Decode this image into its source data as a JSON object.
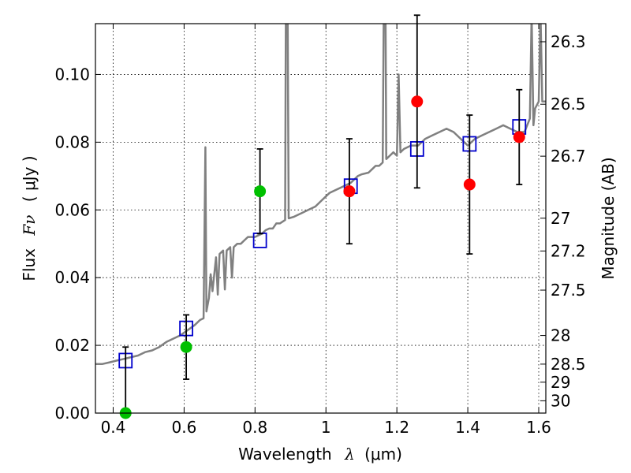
{
  "chart_data": {
    "type": "scatter",
    "xlabel": {
      "prefix": "Wavelength",
      "symbol": "λ",
      "unit": "(μm)"
    },
    "ylabel": {
      "prefix": "Flux",
      "symbol": "Fν",
      "unit": "( μJy )"
    },
    "y2label": "Magnitude (AB)",
    "xlim": [
      0.35,
      1.62
    ],
    "ylim": [
      0.0,
      0.115
    ],
    "grid": true,
    "x_ticks": [
      {
        "value": 0.4,
        "label": "0.4"
      },
      {
        "value": 0.6,
        "label": "0.6"
      },
      {
        "value": 0.8,
        "label": "0.8"
      },
      {
        "value": 1.0,
        "label": "1"
      },
      {
        "value": 1.2,
        "label": "1.2"
      },
      {
        "value": 1.4,
        "label": "1.4"
      },
      {
        "value": 1.6,
        "label": "1.6"
      }
    ],
    "y_ticks": [
      {
        "value": 0.0,
        "label": "0.00"
      },
      {
        "value": 0.02,
        "label": "0.02"
      },
      {
        "value": 0.04,
        "label": "0.04"
      },
      {
        "value": 0.06,
        "label": "0.06"
      },
      {
        "value": 0.08,
        "label": "0.08"
      },
      {
        "value": 0.1,
        "label": "0.10"
      }
    ],
    "mag_ticks": [
      {
        "value": 26.3,
        "label": "26.3"
      },
      {
        "value": 26.5,
        "label": "26.5"
      },
      {
        "value": 26.7,
        "label": "26.7"
      },
      {
        "value": 27.0,
        "label": "27"
      },
      {
        "value": 27.2,
        "label": "27.2"
      },
      {
        "value": 27.5,
        "label": "27.5"
      },
      {
        "value": 28.0,
        "label": "28"
      },
      {
        "value": 28.5,
        "label": "28.5"
      },
      {
        "value": 29.0,
        "label": "29"
      },
      {
        "value": 30.0,
        "label": "30"
      }
    ],
    "series": [
      {
        "kind": "spectrum",
        "color": "#808080",
        "points": [
          [
            0.35,
            0.0145
          ],
          [
            0.37,
            0.0145
          ],
          [
            0.39,
            0.015
          ],
          [
            0.41,
            0.0155
          ],
          [
            0.43,
            0.016
          ],
          [
            0.45,
            0.0165
          ],
          [
            0.47,
            0.017
          ],
          [
            0.49,
            0.018
          ],
          [
            0.51,
            0.0185
          ],
          [
            0.53,
            0.0195
          ],
          [
            0.55,
            0.021
          ],
          [
            0.57,
            0.022
          ],
          [
            0.59,
            0.023
          ],
          [
            0.61,
            0.0245
          ],
          [
            0.63,
            0.026
          ],
          [
            0.645,
            0.0275
          ],
          [
            0.655,
            0.028
          ],
          [
            0.66,
            0.0785
          ],
          [
            0.663,
            0.03
          ],
          [
            0.67,
            0.034
          ],
          [
            0.675,
            0.041
          ],
          [
            0.68,
            0.036
          ],
          [
            0.69,
            0.046
          ],
          [
            0.695,
            0.035
          ],
          [
            0.7,
            0.047
          ],
          [
            0.71,
            0.048
          ],
          [
            0.715,
            0.0365
          ],
          [
            0.72,
            0.048
          ],
          [
            0.73,
            0.049
          ],
          [
            0.735,
            0.04
          ],
          [
            0.74,
            0.049
          ],
          [
            0.75,
            0.05
          ],
          [
            0.76,
            0.05
          ],
          [
            0.77,
            0.051
          ],
          [
            0.78,
            0.052
          ],
          [
            0.8,
            0.052
          ],
          [
            0.81,
            0.0525
          ],
          [
            0.82,
            0.053
          ],
          [
            0.83,
            0.054
          ],
          [
            0.84,
            0.0545
          ],
          [
            0.85,
            0.0545
          ],
          [
            0.86,
            0.056
          ],
          [
            0.87,
            0.056
          ],
          [
            0.885,
            0.057
          ],
          [
            0.887,
            0.118
          ],
          [
            0.892,
            0.118
          ],
          [
            0.895,
            0.0575
          ],
          [
            0.91,
            0.058
          ],
          [
            0.93,
            0.059
          ],
          [
            0.95,
            0.06
          ],
          [
            0.97,
            0.061
          ],
          [
            0.99,
            0.063
          ],
          [
            1.01,
            0.065
          ],
          [
            1.03,
            0.066
          ],
          [
            1.05,
            0.067
          ],
          [
            1.07,
            0.068
          ],
          [
            1.09,
            0.07
          ],
          [
            1.1,
            0.0705
          ],
          [
            1.12,
            0.071
          ],
          [
            1.13,
            0.072
          ],
          [
            1.14,
            0.073
          ],
          [
            1.15,
            0.073
          ],
          [
            1.16,
            0.074
          ],
          [
            1.163,
            0.118
          ],
          [
            1.168,
            0.118
          ],
          [
            1.17,
            0.075
          ],
          [
            1.18,
            0.076
          ],
          [
            1.19,
            0.077
          ],
          [
            1.2,
            0.076
          ],
          [
            1.205,
            0.1
          ],
          [
            1.21,
            0.077
          ],
          [
            1.22,
            0.078
          ],
          [
            1.24,
            0.079
          ],
          [
            1.26,
            0.079
          ],
          [
            1.28,
            0.081
          ],
          [
            1.3,
            0.082
          ],
          [
            1.32,
            0.083
          ],
          [
            1.34,
            0.084
          ],
          [
            1.36,
            0.083
          ],
          [
            1.38,
            0.081
          ],
          [
            1.4,
            0.079
          ],
          [
            1.42,
            0.081
          ],
          [
            1.44,
            0.082
          ],
          [
            1.46,
            0.083
          ],
          [
            1.48,
            0.084
          ],
          [
            1.5,
            0.085
          ],
          [
            1.52,
            0.084
          ],
          [
            1.54,
            0.083
          ],
          [
            1.56,
            0.083
          ],
          [
            1.575,
            0.087
          ],
          [
            1.58,
            0.118
          ],
          [
            1.585,
            0.085
          ],
          [
            1.59,
            0.09
          ],
          [
            1.6,
            0.092
          ],
          [
            1.605,
            0.118
          ],
          [
            1.61,
            0.092
          ],
          [
            1.62,
            0.092
          ]
        ]
      },
      {
        "kind": "model_squares",
        "color": "#0000cc",
        "points": [
          {
            "x": 0.435,
            "y": 0.0155
          },
          {
            "x": 0.606,
            "y": 0.025
          },
          {
            "x": 0.814,
            "y": 0.051
          },
          {
            "x": 1.07,
            "y": 0.067
          },
          {
            "x": 1.257,
            "y": 0.078
          },
          {
            "x": 1.405,
            "y": 0.0795
          },
          {
            "x": 1.545,
            "y": 0.0845
          }
        ]
      },
      {
        "kind": "green_points",
        "color": "#00c000",
        "points": [
          {
            "x": 0.435,
            "y": 0.0,
            "err": 0.0195
          },
          {
            "x": 0.606,
            "y": 0.0195,
            "err": 0.0095
          },
          {
            "x": 0.814,
            "y": 0.0655,
            "err": 0.0125
          }
        ]
      },
      {
        "kind": "red_points",
        "color": "#ff0000",
        "points": [
          {
            "x": 1.066,
            "y": 0.0655,
            "err": 0.0155
          },
          {
            "x": 1.257,
            "y": 0.092,
            "err": 0.0255
          },
          {
            "x": 1.405,
            "y": 0.0675,
            "err": 0.0205
          },
          {
            "x": 1.545,
            "y": 0.0815,
            "err": 0.014
          }
        ]
      }
    ]
  }
}
